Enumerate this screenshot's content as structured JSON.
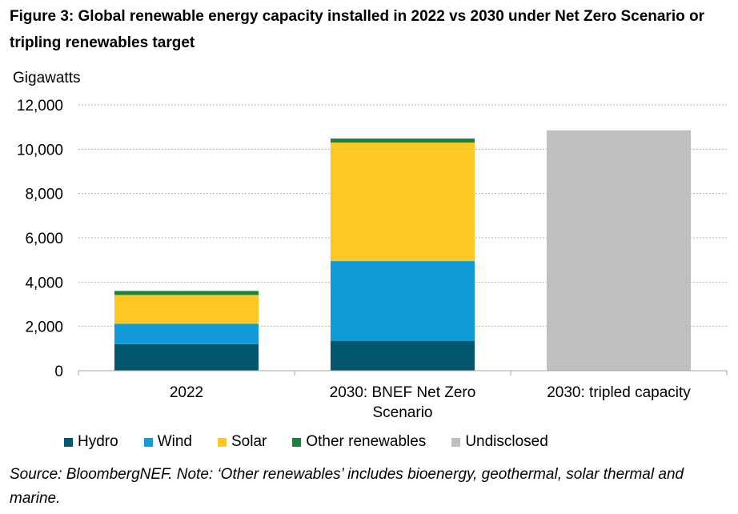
{
  "title": "Figure 3:  Global renewable energy capacity installed in 2022 vs 2030 under Net Zero Scenario or tripling renewables target",
  "source_note": "Source: BloombergNEF.  Note: ‘Other renewables’ includes bioenergy, geothermal, solar thermal and marine.",
  "chart_data": {
    "type": "bar",
    "stacked": true,
    "ylabel": "Gigawatts",
    "ylim": [
      0,
      12000
    ],
    "yticks": [
      0,
      2000,
      4000,
      6000,
      8000,
      10000,
      12000
    ],
    "ytick_labels": [
      "0",
      "2,000",
      "4,000",
      "6,000",
      "8,000",
      "10,000",
      "12,000"
    ],
    "grid": true,
    "legend_position": "bottom",
    "categories": [
      "2022",
      "2030: BNEF Net Zero Scenario",
      "2030: tripled capacity"
    ],
    "category_label_lines": [
      [
        "2022"
      ],
      [
        "2030: BNEF Net Zero",
        "Scenario"
      ],
      [
        "2030: tripled capacity"
      ]
    ],
    "series": [
      {
        "name": "Hydro",
        "color": "#02566e",
        "values": [
          1200,
          1350,
          0
        ]
      },
      {
        "name": "Wind",
        "color": "#119bd9",
        "values": [
          920,
          3600,
          0
        ]
      },
      {
        "name": "Solar",
        "color": "#fdc823",
        "values": [
          1300,
          5350,
          0
        ]
      },
      {
        "name": "Other renewables",
        "color": "#15853d",
        "values": [
          180,
          180,
          0
        ]
      },
      {
        "name": "Undisclosed",
        "color": "#bfbfbf",
        "values": [
          0,
          0,
          10850
        ]
      }
    ]
  }
}
